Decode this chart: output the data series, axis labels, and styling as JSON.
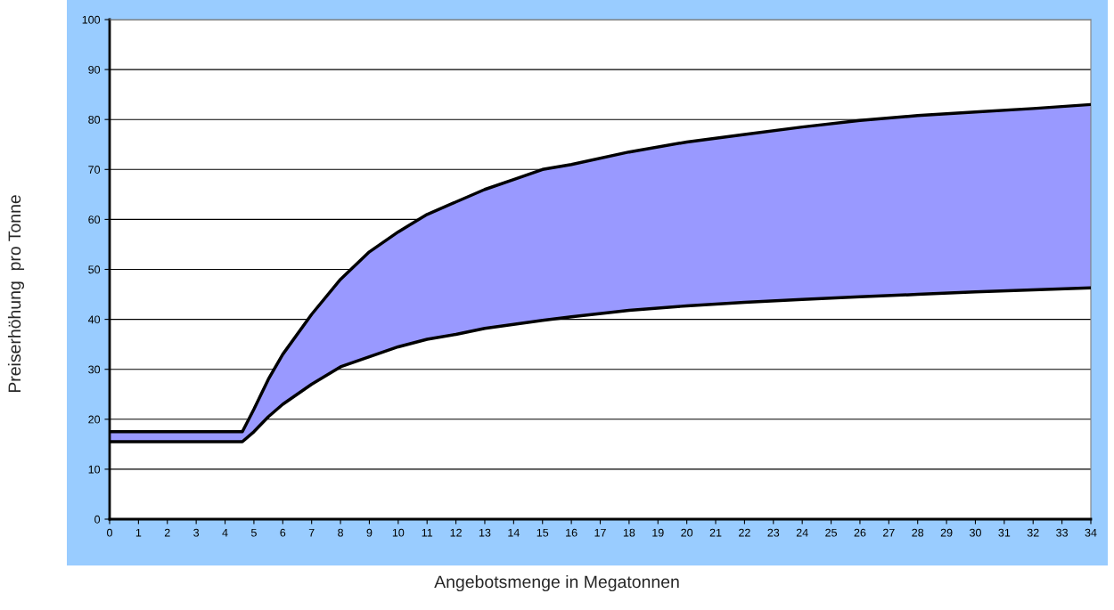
{
  "chart_data": {
    "type": "line",
    "xlabel": "Angebotsmenge in Megatonnen",
    "ylabel": "Preiserhöhung  pro Tonne",
    "x": [
      0,
      4.6,
      5,
      5.5,
      6,
      7,
      8,
      9,
      10,
      11,
      12,
      13,
      14,
      15,
      16,
      18,
      20,
      22,
      24,
      26,
      28,
      30,
      32,
      34
    ],
    "series": [
      {
        "color": "#000000",
        "values": [
          17.5,
          17.5,
          22,
          28,
          33,
          41,
          48,
          53.5,
          57.5,
          61,
          63.5,
          66,
          68,
          70,
          71,
          73.5,
          75.5,
          77,
          78.5,
          79.8,
          80.8,
          81.5,
          82.2,
          83
        ],
        "upper": [
          17.5,
          17.5,
          22,
          28,
          33,
          41,
          48,
          53.5,
          57.5,
          61,
          63.5,
          66,
          68,
          70,
          71,
          73.5,
          75.5,
          77,
          78.5,
          79.8,
          80.8,
          81.5,
          82.2,
          83
        ],
        "lower": [
          15.5,
          15.5,
          17.5,
          20.5,
          23,
          27,
          30.5,
          32.5,
          34.5,
          36,
          37,
          38.2,
          39,
          39.8,
          40.5,
          41.8,
          42.7,
          43.4,
          44,
          44.5,
          45,
          45.5,
          45.9,
          46.3
        ]
      },
      {
        "color": "#000000",
        "values": [
          15.5,
          15.5,
          17.5,
          20.5,
          23,
          27,
          30.5,
          32.5,
          34.5,
          36,
          37,
          38.2,
          39,
          39.8,
          40.5,
          41.8,
          42.7,
          43.4,
          44,
          44.5,
          45,
          45.5,
          45.9,
          46.3
        ]
      }
    ],
    "xlim": [
      0,
      34
    ],
    "ylim": [
      0,
      100
    ],
    "xticks": [
      0,
      1,
      2,
      3,
      4,
      5,
      6,
      7,
      8,
      9,
      10,
      11,
      12,
      13,
      14,
      15,
      16,
      17,
      18,
      19,
      20,
      21,
      22,
      23,
      24,
      25,
      26,
      27,
      28,
      29,
      30,
      31,
      32,
      33,
      34
    ],
    "yticks": [
      0,
      10,
      20,
      30,
      40,
      50,
      60,
      70,
      80,
      90,
      100
    ],
    "grid": "y"
  }
}
